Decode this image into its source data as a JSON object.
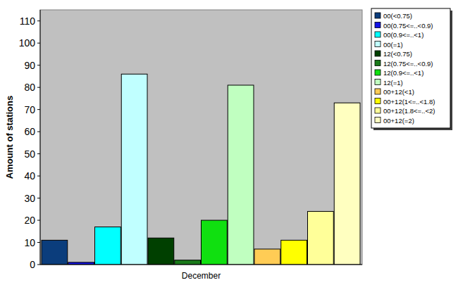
{
  "chart_data": {
    "type": "bar",
    "y_label": "Amount of stations",
    "categories": [
      "December"
    ],
    "series": [
      {
        "name": "00(<0.75)",
        "color": "#0b3d7c",
        "values": [
          11
        ]
      },
      {
        "name": "00(0.75<=..<0.9)",
        "color": "#1414e6",
        "values": [
          1
        ]
      },
      {
        "name": "00(0.9<=..<1)",
        "color": "#00ffff",
        "values": [
          17
        ]
      },
      {
        "name": "00(=1)",
        "color": "#c0ffff",
        "values": [
          86
        ]
      },
      {
        "name": "12(<0.75)",
        "color": "#004000",
        "values": [
          12
        ]
      },
      {
        "name": "12(0.75<=..<0.9)",
        "color": "#1a7a1a",
        "values": [
          2
        ]
      },
      {
        "name": "12(0.9<=..<1)",
        "color": "#10e010",
        "values": [
          20
        ]
      },
      {
        "name": "12(=1)",
        "color": "#c0ffc0",
        "values": [
          81
        ]
      },
      {
        "name": "00+12(<1)",
        "color": "#ffcc55",
        "values": [
          7
        ]
      },
      {
        "name": "00+12(1<=..<1.8)",
        "color": "#ffff00",
        "values": [
          11
        ]
      },
      {
        "name": "00+12(1.8<=..<2)",
        "color": "#ffff99",
        "values": [
          24
        ]
      },
      {
        "name": "00+12(=2)",
        "color": "#ffffc0",
        "values": [
          73
        ]
      }
    ],
    "ylim": [
      0,
      115
    ],
    "yticks": [
      0,
      10,
      20,
      30,
      40,
      50,
      60,
      70,
      80,
      90,
      100,
      110
    ],
    "grid": false,
    "legend": "top-right"
  }
}
